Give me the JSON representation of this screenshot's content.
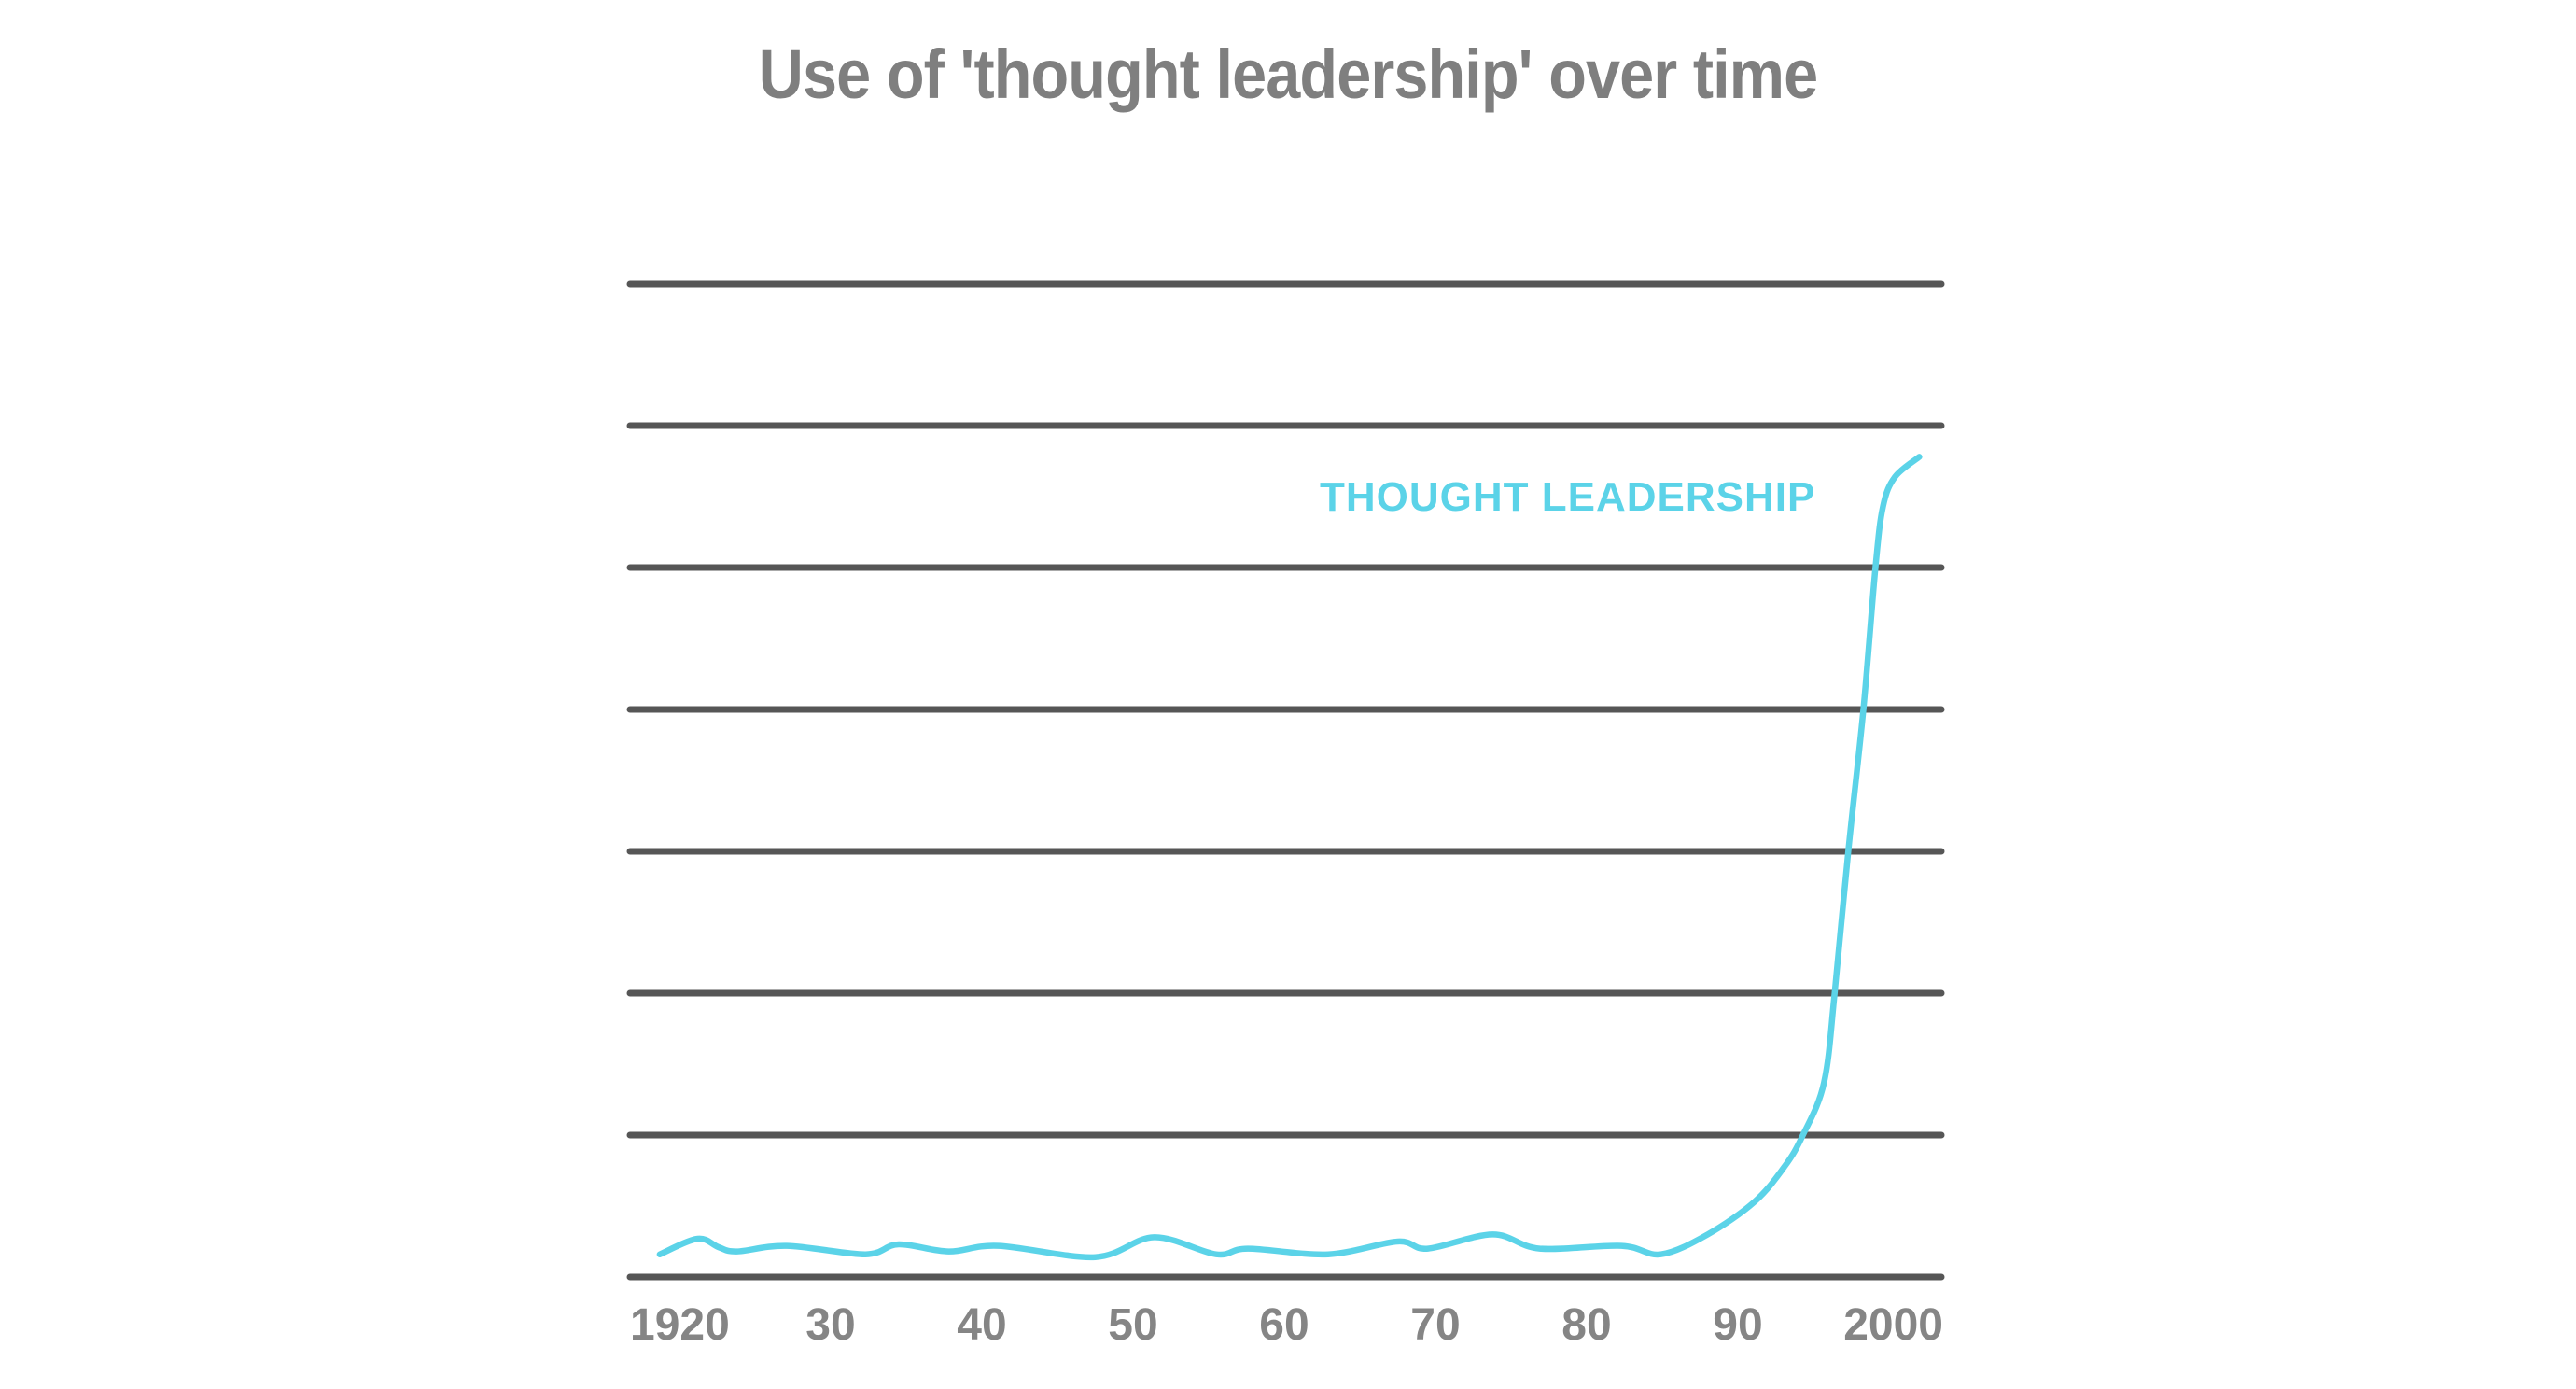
{
  "title": "Use of 'thought leadership' over time",
  "colors": {
    "title": "#7f7f7f",
    "gridline": "#565656",
    "tick_label": "#858585",
    "series": "#5bd3e8"
  },
  "series_label": "THOUGHT LEADERSHIP",
  "x_ticks": [
    {
      "label": "1920",
      "year": 1920,
      "align": "left"
    },
    {
      "label": "30",
      "year": 1930,
      "align": "center"
    },
    {
      "label": "40",
      "year": 1940,
      "align": "center"
    },
    {
      "label": "50",
      "year": 1950,
      "align": "center"
    },
    {
      "label": "60",
      "year": 1960,
      "align": "center"
    },
    {
      "label": "70",
      "year": 1970,
      "align": "center"
    },
    {
      "label": "80",
      "year": 1980,
      "align": "center"
    },
    {
      "label": "90",
      "year": 1990,
      "align": "center"
    },
    {
      "label": "2000",
      "year": 2000,
      "align": "right"
    }
  ],
  "chart_data": {
    "type": "line",
    "title": "Use of 'thought leadership' over time",
    "xlabel": "",
    "ylabel": "",
    "x_tick_labels": [
      "1920",
      "30",
      "40",
      "50",
      "60",
      "70",
      "80",
      "90",
      "2000"
    ],
    "y_tick_labels": [],
    "ylim": [
      0,
      7
    ],
    "xlim": [
      1918,
      2003
    ],
    "grid": true,
    "gridlines_count": 8,
    "legend": "inline label near end of line",
    "series": [
      {
        "name": "THOUGHT LEADERSHIP",
        "color": "#5bd3e8",
        "x": [
          1918.7,
          1921.2,
          1922.6,
          1923.8,
          1927.1,
          1932.3,
          1934.5,
          1937.8,
          1941.1,
          1947.5,
          1951.4,
          1955.5,
          1957.6,
          1962.9,
          1967.5,
          1969.5,
          1973.8,
          1976.9,
          1982.3,
          1984.9,
          1988.0,
          1991.1,
          1993.1,
          1994.3,
          1995.7,
          1996.4,
          1997.3,
          1998.3,
          1999.1,
          1999.6,
          2000.4,
          2002.0
        ],
        "values": [
          0.16,
          0.27,
          0.21,
          0.18,
          0.22,
          0.16,
          0.23,
          0.18,
          0.22,
          0.14,
          0.28,
          0.16,
          0.2,
          0.16,
          0.25,
          0.2,
          0.3,
          0.2,
          0.22,
          0.16,
          0.3,
          0.53,
          0.78,
          1.0,
          1.37,
          2.0,
          3.0,
          4.0,
          5.0,
          5.43,
          5.64,
          5.78
        ]
      }
    ]
  }
}
